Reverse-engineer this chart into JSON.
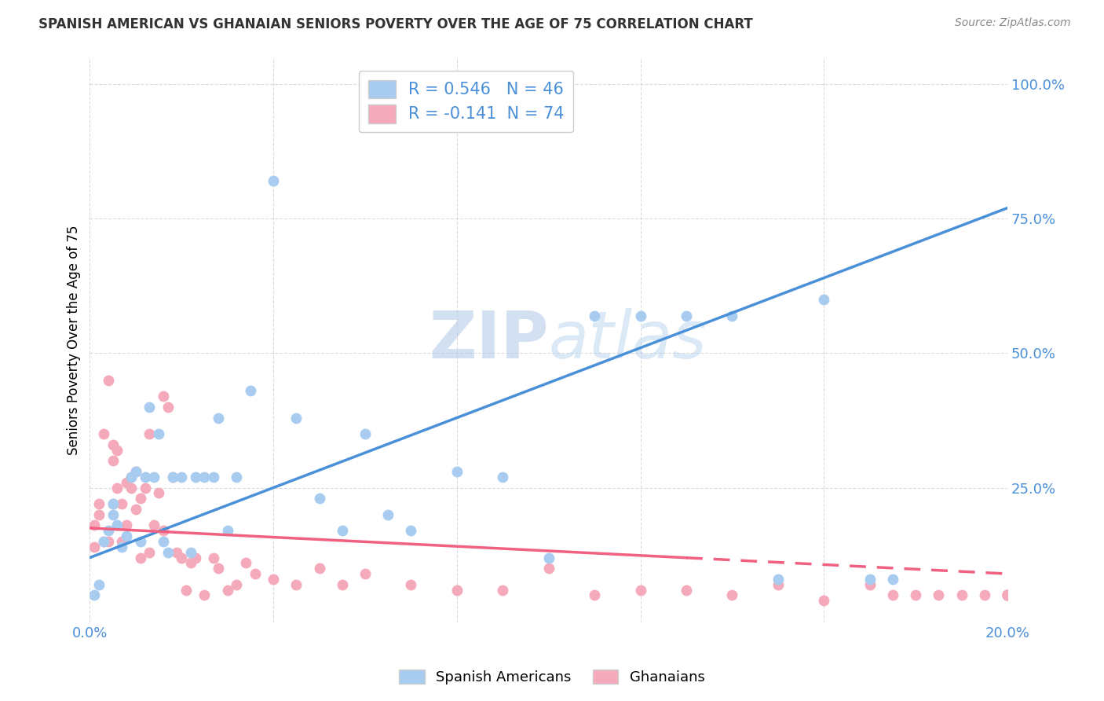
{
  "title": "SPANISH AMERICAN VS GHANAIAN SENIORS POVERTY OVER THE AGE OF 75 CORRELATION CHART",
  "source": "Source: ZipAtlas.com",
  "ylabel": "Seniors Poverty Over the Age of 75",
  "x_min": 0.0,
  "x_max": 0.2,
  "y_min": 0.0,
  "y_max": 1.05,
  "x_ticks": [
    0.0,
    0.04,
    0.08,
    0.12,
    0.16,
    0.2
  ],
  "x_tick_labels": [
    "0.0%",
    "",
    "",
    "",
    "",
    "20.0%"
  ],
  "y_ticks": [
    0.0,
    0.25,
    0.5,
    0.75,
    1.0
  ],
  "y_tick_labels": [
    "",
    "25.0%",
    "50.0%",
    "75.0%",
    "100.0%"
  ],
  "blue_color": "#A8CCF0",
  "pink_color": "#F5AABB",
  "blue_line_color": "#4A90D9",
  "pink_line_color": "#F06080",
  "R_blue": 0.546,
  "N_blue": 46,
  "R_pink": -0.141,
  "N_pink": 74,
  "watermark_zip": "ZIP",
  "watermark_atlas": "atlas",
  "background_color": "#FFFFFF",
  "grid_color": "#CCCCCC",
  "blue_scatter_x": [
    0.001,
    0.002,
    0.003,
    0.004,
    0.005,
    0.005,
    0.006,
    0.007,
    0.008,
    0.009,
    0.01,
    0.011,
    0.012,
    0.013,
    0.014,
    0.015,
    0.016,
    0.017,
    0.018,
    0.02,
    0.022,
    0.023,
    0.025,
    0.027,
    0.028,
    0.03,
    0.032,
    0.035,
    0.04,
    0.045,
    0.05,
    0.055,
    0.06,
    0.065,
    0.07,
    0.08,
    0.09,
    0.1,
    0.11,
    0.12,
    0.13,
    0.14,
    0.15,
    0.16,
    0.17,
    0.175
  ],
  "blue_scatter_y": [
    0.05,
    0.07,
    0.15,
    0.17,
    0.2,
    0.22,
    0.18,
    0.14,
    0.16,
    0.27,
    0.28,
    0.15,
    0.27,
    0.4,
    0.27,
    0.35,
    0.15,
    0.13,
    0.27,
    0.27,
    0.13,
    0.27,
    0.27,
    0.27,
    0.38,
    0.17,
    0.27,
    0.43,
    0.82,
    0.38,
    0.23,
    0.17,
    0.35,
    0.2,
    0.17,
    0.28,
    0.27,
    0.12,
    0.57,
    0.57,
    0.57,
    0.57,
    0.08,
    0.6,
    0.08,
    0.08
  ],
  "pink_scatter_x": [
    0.001,
    0.001,
    0.002,
    0.002,
    0.003,
    0.003,
    0.004,
    0.004,
    0.005,
    0.005,
    0.005,
    0.006,
    0.006,
    0.007,
    0.007,
    0.008,
    0.008,
    0.009,
    0.009,
    0.01,
    0.01,
    0.011,
    0.011,
    0.012,
    0.013,
    0.013,
    0.014,
    0.015,
    0.016,
    0.016,
    0.017,
    0.018,
    0.019,
    0.02,
    0.021,
    0.022,
    0.023,
    0.025,
    0.027,
    0.028,
    0.03,
    0.032,
    0.034,
    0.036,
    0.04,
    0.045,
    0.05,
    0.055,
    0.06,
    0.07,
    0.08,
    0.09,
    0.1,
    0.11,
    0.12,
    0.13,
    0.14,
    0.15,
    0.16,
    0.17,
    0.175,
    0.18,
    0.185,
    0.19,
    0.195,
    0.2,
    0.2,
    0.2,
    0.2,
    0.2,
    0.2,
    0.2,
    0.2,
    0.2
  ],
  "pink_scatter_y": [
    0.18,
    0.14,
    0.2,
    0.22,
    0.15,
    0.35,
    0.15,
    0.45,
    0.22,
    0.3,
    0.33,
    0.25,
    0.32,
    0.22,
    0.15,
    0.18,
    0.26,
    0.27,
    0.25,
    0.21,
    0.28,
    0.23,
    0.12,
    0.25,
    0.35,
    0.13,
    0.18,
    0.24,
    0.42,
    0.17,
    0.4,
    0.27,
    0.13,
    0.12,
    0.06,
    0.11,
    0.12,
    0.05,
    0.12,
    0.1,
    0.06,
    0.07,
    0.11,
    0.09,
    0.08,
    0.07,
    0.1,
    0.07,
    0.09,
    0.07,
    0.06,
    0.06,
    0.1,
    0.05,
    0.06,
    0.06,
    0.05,
    0.07,
    0.04,
    0.07,
    0.05,
    0.05,
    0.05,
    0.05,
    0.05,
    0.05,
    0.05,
    0.05,
    0.05,
    0.05,
    0.05,
    0.05,
    0.05,
    0.05
  ],
  "blue_regline_x": [
    0.0,
    0.2
  ],
  "blue_regline_y": [
    0.12,
    0.77
  ],
  "pink_regline_x": [
    0.0,
    0.2
  ],
  "pink_regline_y": [
    0.175,
    0.09
  ]
}
